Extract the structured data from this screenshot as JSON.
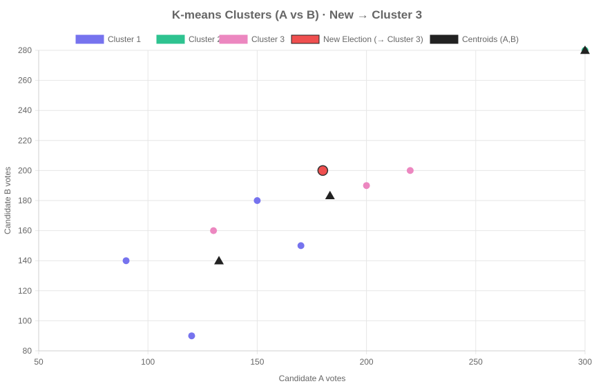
{
  "chart_data": {
    "type": "scatter",
    "title": "K-means Clusters (A vs B) · New → Cluster 3",
    "xlabel": "Candidate A votes",
    "ylabel": "Candidate B votes",
    "xlim": [
      50,
      300
    ],
    "ylim": [
      80,
      280
    ],
    "xticks": [
      50,
      100,
      150,
      200,
      250,
      300
    ],
    "yticks": [
      80,
      100,
      120,
      140,
      160,
      180,
      200,
      220,
      240,
      260,
      280
    ],
    "grid": true,
    "legend_position": "top",
    "series": [
      {
        "name": "Cluster 1",
        "color": "#7673ee",
        "marker": "circle",
        "points": [
          [
            90,
            140
          ],
          [
            120,
            90
          ],
          [
            150,
            180
          ],
          [
            170,
            150
          ]
        ]
      },
      {
        "name": "Cluster 2",
        "color": "#2ec390",
        "marker": "circle",
        "points": [
          [
            300,
            280
          ]
        ]
      },
      {
        "name": "Cluster 3",
        "color": "#ec87c0",
        "marker": "circle",
        "points": [
          [
            130,
            160
          ],
          [
            200,
            190
          ],
          [
            220,
            200
          ]
        ]
      },
      {
        "name": "New Election (→ Cluster 3)",
        "color": "#ef4f4f",
        "marker": "circle-large",
        "points": [
          [
            180,
            200
          ]
        ]
      },
      {
        "name": "Centroids (A,B)",
        "color": "#222222",
        "marker": "triangle",
        "points": [
          [
            132.5,
            140
          ],
          [
            300,
            280
          ],
          [
            183.3,
            183.3
          ]
        ]
      }
    ]
  }
}
